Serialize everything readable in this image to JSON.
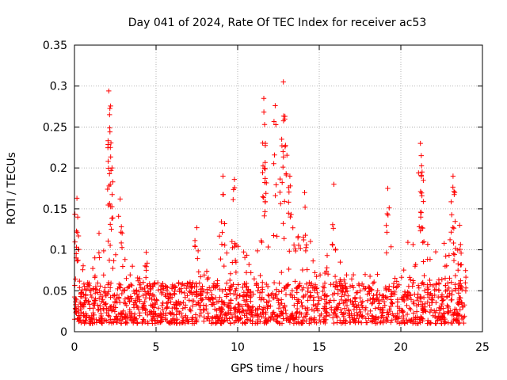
{
  "chart_data": {
    "type": "scatter",
    "title": "Day 041 of 2024, Rate Of TEC Index for receiver ac53",
    "xlabel": "GPS time / hours",
    "ylabel": "ROTI / TECUs",
    "xlim": [
      0,
      25
    ],
    "ylim": [
      0,
      0.35
    ],
    "x_ticks": [
      0,
      5,
      10,
      15,
      20,
      25
    ],
    "x_tick_labels": [
      "0",
      "5",
      "10",
      "15",
      "20",
      "25"
    ],
    "y_ticks": [
      0,
      0.05,
      0.1,
      0.15,
      0.2,
      0.25,
      0.3,
      0.35
    ],
    "y_tick_labels": [
      "0",
      "0.05",
      "0.1",
      "0.15",
      "0.2",
      "0.25",
      "0.3",
      "0.35"
    ],
    "grid": true,
    "marker": "+",
    "color": "#ff0000",
    "series": [
      {
        "name": "ROTI",
        "x_range": [
          0,
          24
        ],
        "baseline_band": [
          0.01,
          0.06
        ],
        "notable_peaks": [
          {
            "x": 0.15,
            "y": 0.163
          },
          {
            "x": 0.2,
            "y": 0.14
          },
          {
            "x": 2.1,
            "y": 0.294
          },
          {
            "x": 2.15,
            "y": 0.265
          },
          {
            "x": 2.2,
            "y": 0.225
          },
          {
            "x": 2.3,
            "y": 0.2
          },
          {
            "x": 2.8,
            "y": 0.162
          },
          {
            "x": 4.4,
            "y": 0.097
          },
          {
            "x": 7.5,
            "y": 0.127
          },
          {
            "x": 9.1,
            "y": 0.19
          },
          {
            "x": 9.8,
            "y": 0.186
          },
          {
            "x": 11.6,
            "y": 0.285
          },
          {
            "x": 11.65,
            "y": 0.253
          },
          {
            "x": 11.7,
            "y": 0.23
          },
          {
            "x": 12.3,
            "y": 0.276
          },
          {
            "x": 12.8,
            "y": 0.305
          },
          {
            "x": 12.9,
            "y": 0.263
          },
          {
            "x": 12.7,
            "y": 0.235
          },
          {
            "x": 13.2,
            "y": 0.19
          },
          {
            "x": 14.1,
            "y": 0.17
          },
          {
            "x": 15.9,
            "y": 0.18
          },
          {
            "x": 19.2,
            "y": 0.175
          },
          {
            "x": 21.2,
            "y": 0.23
          },
          {
            "x": 21.25,
            "y": 0.215
          },
          {
            "x": 21.3,
            "y": 0.195
          },
          {
            "x": 23.2,
            "y": 0.19
          },
          {
            "x": 23.3,
            "y": 0.17
          },
          {
            "x": 23.6,
            "y": 0.13
          }
        ],
        "activity_envelope": [
          {
            "x": 0,
            "y": 0.1
          },
          {
            "x": 1,
            "y": 0.07
          },
          {
            "x": 2,
            "y": 0.17
          },
          {
            "x": 3,
            "y": 0.1
          },
          {
            "x": 4,
            "y": 0.07
          },
          {
            "x": 5,
            "y": 0.06
          },
          {
            "x": 6,
            "y": 0.055
          },
          {
            "x": 7,
            "y": 0.06
          },
          {
            "x": 8,
            "y": 0.08
          },
          {
            "x": 9,
            "y": 0.13
          },
          {
            "x": 10,
            "y": 0.11
          },
          {
            "x": 11,
            "y": 0.09
          },
          {
            "x": 12,
            "y": 0.17
          },
          {
            "x": 13,
            "y": 0.15
          },
          {
            "x": 14,
            "y": 0.13
          },
          {
            "x": 15,
            "y": 0.09
          },
          {
            "x": 16,
            "y": 0.1
          },
          {
            "x": 17,
            "y": 0.07
          },
          {
            "x": 18,
            "y": 0.07
          },
          {
            "x": 19,
            "y": 0.11
          },
          {
            "x": 20,
            "y": 0.1
          },
          {
            "x": 21,
            "y": 0.13
          },
          {
            "x": 22,
            "y": 0.1
          },
          {
            "x": 23,
            "y": 0.12
          },
          {
            "x": 24,
            "y": 0.09
          }
        ]
      }
    ]
  }
}
